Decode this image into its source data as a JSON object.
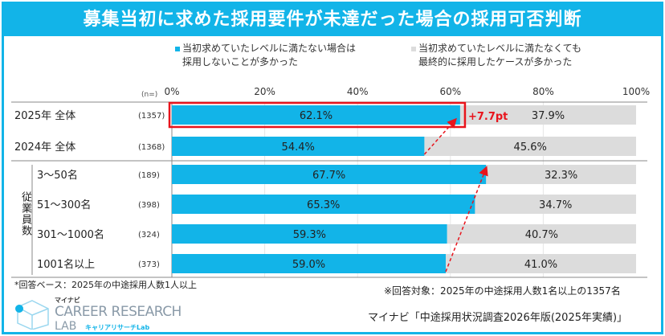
{
  "title": "募集当初に求めた採用要件が未達だった場合の採用可否判断",
  "legend": [
    {
      "line1": "当初求めていたレベルに満たない場合は",
      "line2": "採用しないことが多かった",
      "color": "#12b4e8"
    },
    {
      "line1": "当初求めていたレベルに満たなくても",
      "line2": "最終的に採用したケースが多かった",
      "color": "#dcdcdc"
    }
  ],
  "chart_data": {
    "type": "bar",
    "orientation": "horizontal-stacked-100",
    "n_label": "(n=)",
    "xlim": [
      0,
      100
    ],
    "xticks": [
      "0%",
      "20%",
      "40%",
      "60%",
      "80%",
      "100%"
    ],
    "group_label": "従業員数",
    "categories": [
      "2025年 全体",
      "2024年 全体",
      "3～50名",
      "51～300名",
      "301～1000名",
      "1001名以上"
    ],
    "n": [
      "(1357)",
      "(1368)",
      "(189)",
      "(398)",
      "(324)",
      "(373)"
    ],
    "series": [
      {
        "name": "当初求めていたレベルに満たない場合は採用しないことが多かった",
        "color": "#12b4e8",
        "values": [
          62.1,
          54.4,
          67.7,
          65.3,
          59.3,
          59.0
        ],
        "labels": [
          "62.1%",
          "54.4%",
          "67.7%",
          "65.3%",
          "59.3%",
          "59.0%"
        ]
      },
      {
        "name": "当初求めていたレベルに満たなくても最終的に採用したケースが多かった",
        "color": "#dcdcdc",
        "values": [
          37.9,
          45.6,
          32.3,
          34.7,
          40.7,
          41.0
        ],
        "labels": [
          "37.9%",
          "45.6%",
          "32.3%",
          "34.7%",
          "40.7%",
          "41.0%"
        ]
      }
    ],
    "annotation": "+7.7pt",
    "annotation_color": "#e8141c"
  },
  "footer": {
    "base_note": "*回答ベース：2025年の中途採用人数1人以上",
    "target_note": "※回答対象：2025年の中途採用人数1名以上の1357名",
    "source": "マイナビ「中途採用状況調査2026年版(2025年実績)」"
  },
  "logo": {
    "top": "マイナビ",
    "main": "CAREER RESEARCH",
    "sub1": "LAB",
    "sub2": "キャリアリサーチLab"
  }
}
